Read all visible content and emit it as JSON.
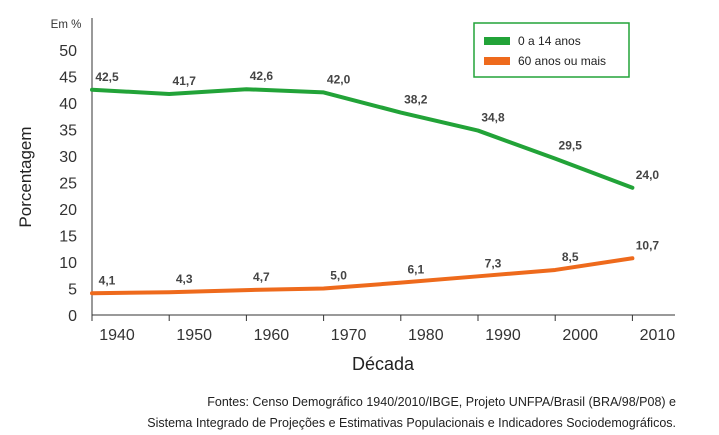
{
  "chart_data": {
    "type": "line",
    "title": "",
    "unit_label": "Em %",
    "xlabel": "Década",
    "ylabel": "Porcentagem",
    "categories": [
      "1940",
      "1950",
      "1960",
      "1970",
      "1980",
      "1990",
      "2000",
      "2010"
    ],
    "ylim": [
      0,
      50
    ],
    "yticks": [
      "0",
      "5",
      "10",
      "15",
      "20",
      "25",
      "30",
      "35",
      "40",
      "45",
      "50"
    ],
    "grid": false,
    "legend_position": "top-right",
    "series": [
      {
        "name": "0 a 14 anos",
        "color": "#22a338",
        "values": [
          42.5,
          41.7,
          42.6,
          42.0,
          38.2,
          34.8,
          29.5,
          24.0
        ],
        "labels": [
          "42,5",
          "41,7",
          "42,6",
          "42,0",
          "38,2",
          "34,8",
          "29,5",
          "24,0"
        ]
      },
      {
        "name": "60 anos ou mais",
        "color": "#ee6a1c",
        "values": [
          4.1,
          4.3,
          4.7,
          5.0,
          6.1,
          7.3,
          8.5,
          10.7
        ],
        "labels": [
          "4,1",
          "4,3",
          "4,7",
          "5,0",
          "6,1",
          "7,3",
          "8,5",
          "10,7"
        ]
      }
    ]
  },
  "footer": {
    "source_line1": "Fontes: Censo Demográfico 1940/2010/IBGE, Projeto UNFPA/Brasil (BRA/98/P08) e",
    "source_line2": "Sistema Integrado de Projeções e Estimativas Populacionais e Indicadores Sociodemográficos."
  }
}
